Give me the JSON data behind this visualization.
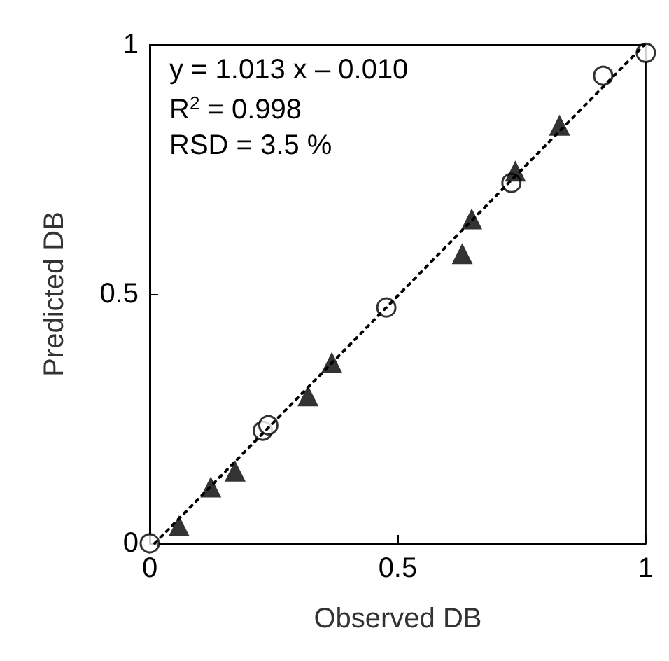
{
  "chart_data": {
    "type": "scatter",
    "xlabel": "Observed DB",
    "ylabel": "Predicted DB",
    "xlim": [
      0,
      1
    ],
    "ylim": [
      0,
      1
    ],
    "xticks": [
      0,
      0.5,
      1
    ],
    "yticks": [
      0,
      0.5,
      1
    ],
    "grid": false,
    "annotations": [
      "y = 1.013 x – 0.010",
      "R$^{2}$ = 0.998",
      "RSD = 3.5 %"
    ],
    "series": [
      {
        "marker": "circle",
        "color": "#000000",
        "x": [
          0,
          0.228,
          0.239,
          0.477,
          0.729,
          0.914,
          1
        ],
        "values": [
          0,
          0.226,
          0.237,
          0.473,
          0.723,
          0.938,
          0.984
        ]
      },
      {
        "marker": "triangle",
        "color": "#000000",
        "x": [
          0.059,
          0.123,
          0.172,
          0.319,
          0.367,
          0.63,
          0.649,
          0.737,
          0.826
        ],
        "values": [
          0.035,
          0.113,
          0.145,
          0.296,
          0.363,
          0.581,
          0.651,
          0.747,
          0.839
        ]
      },
      {
        "type": "line",
        "line_style": "dotted",
        "marker": "none",
        "color": "#000000",
        "x": [
          0.01,
          0.997
        ],
        "values": [
          0,
          1
        ]
      }
    ]
  }
}
